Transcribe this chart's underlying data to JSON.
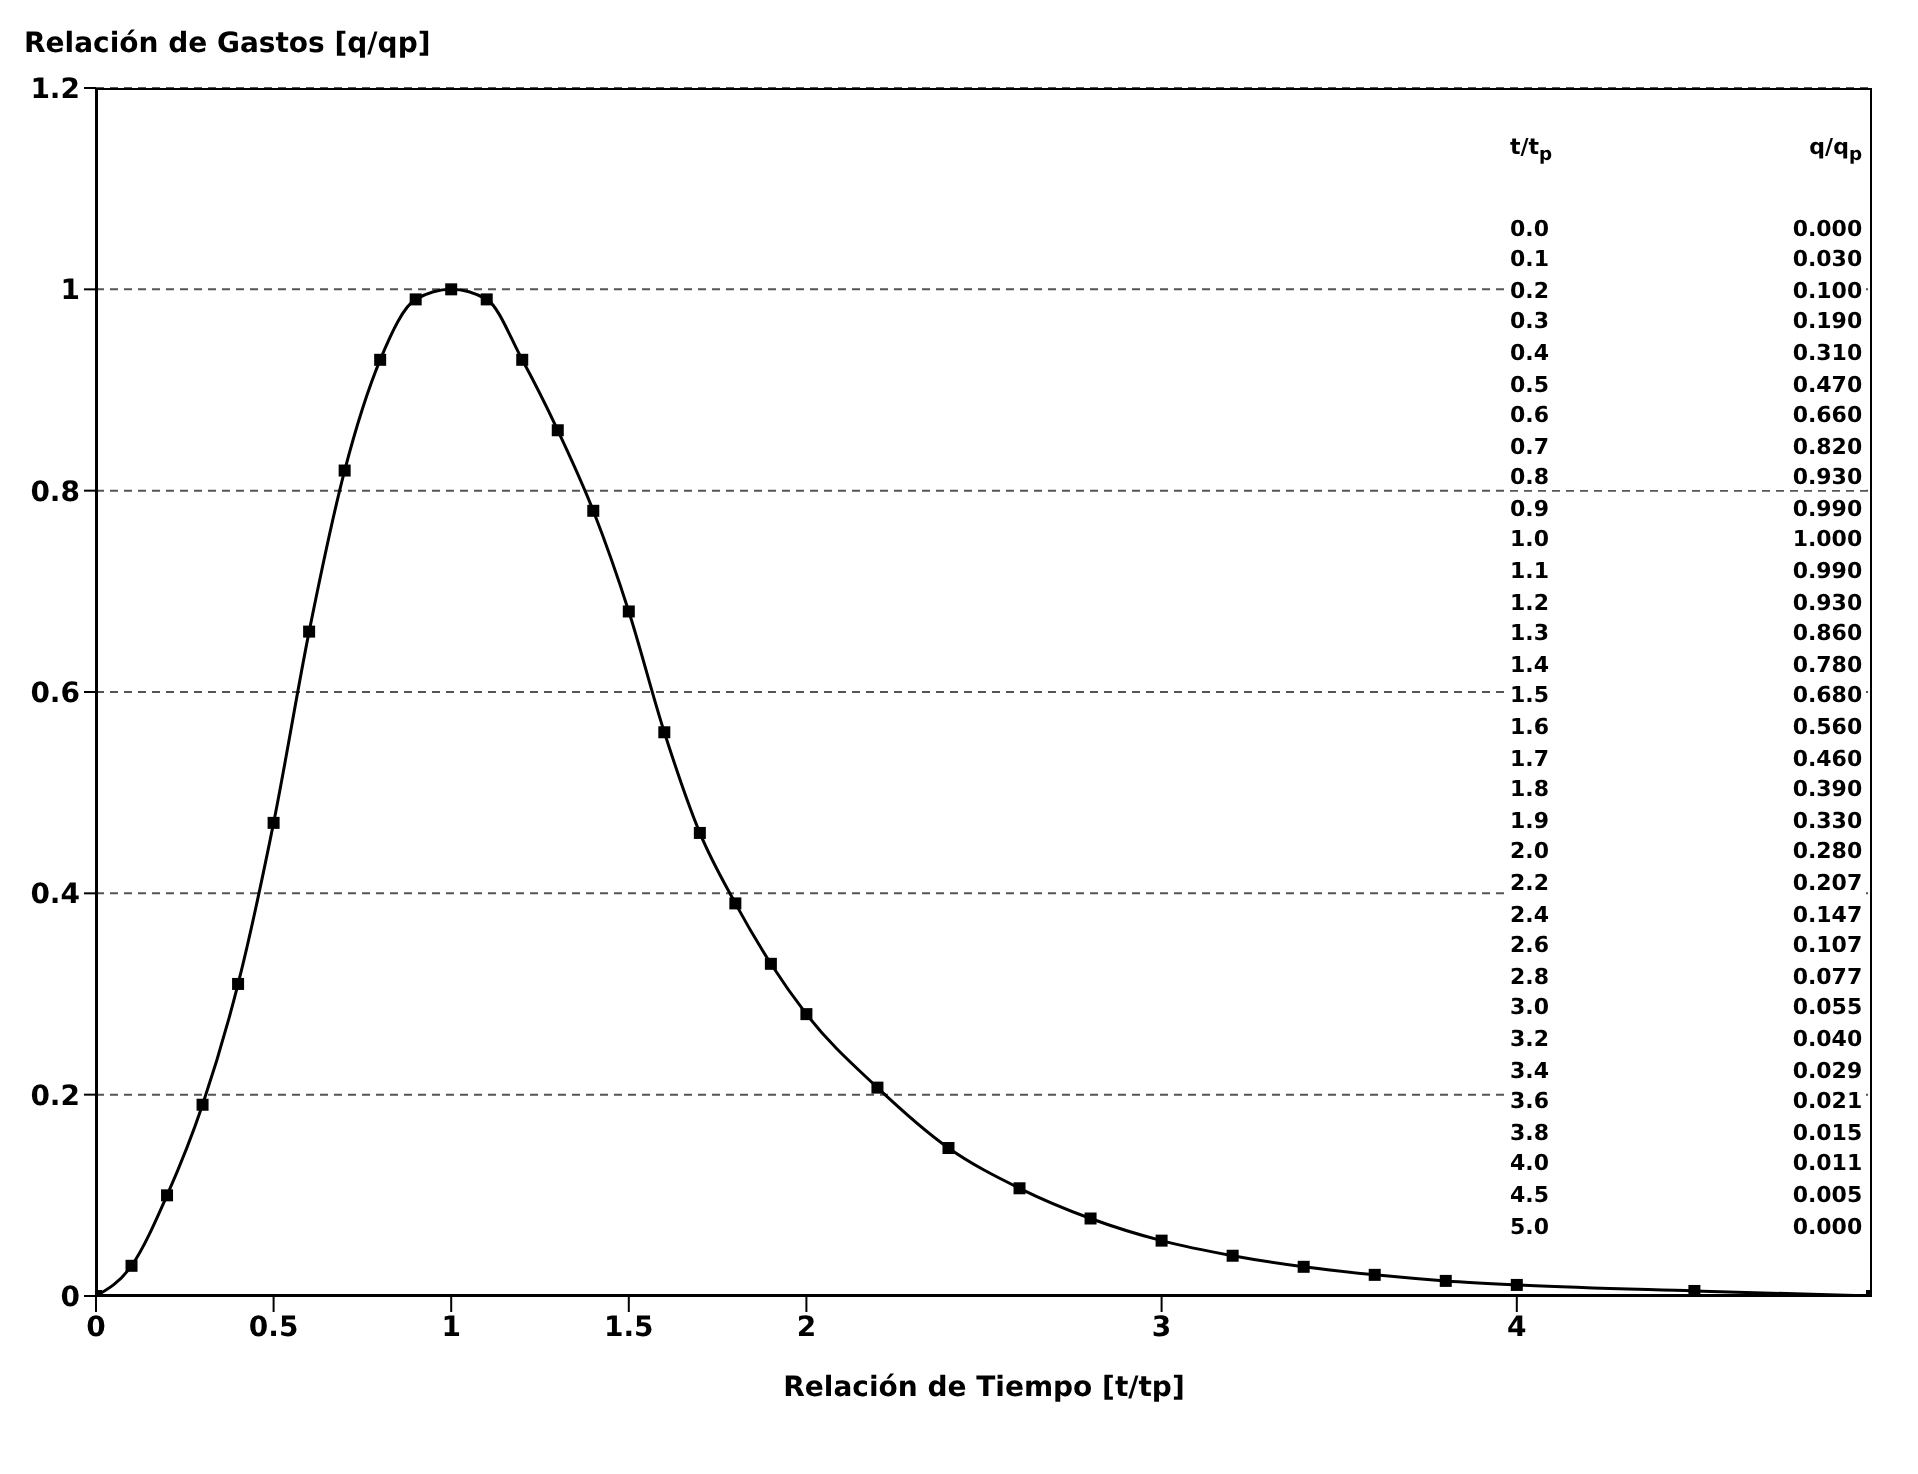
{
  "chart_data": [
    {
      "type": "line",
      "ylabel": "Relación de Gastos [q/qp]",
      "xlabel": "Relación de Tiempo [t/tp]",
      "x": [
        0,
        0.1,
        0.2,
        0.3,
        0.4,
        0.5,
        0.6,
        0.7,
        0.8,
        0.9,
        1.0,
        1.1,
        1.2,
        1.3,
        1.4,
        1.5,
        1.6,
        1.7,
        1.8,
        1.9,
        2.0,
        2.2,
        2.4,
        2.6,
        2.8,
        3.0,
        3.2,
        3.4,
        3.6,
        3.8,
        4.0,
        4.5,
        5.0
      ],
      "series": [
        {
          "color": "#000000",
          "values": [
            0.0,
            0.03,
            0.1,
            0.19,
            0.31,
            0.47,
            0.66,
            0.82,
            0.93,
            0.99,
            1.0,
            0.99,
            0.93,
            0.86,
            0.78,
            0.68,
            0.56,
            0.46,
            0.39,
            0.33,
            0.28,
            0.207,
            0.147,
            0.107,
            0.077,
            0.055,
            0.04,
            0.029,
            0.021,
            0.015,
            0.011,
            0.005,
            0.0
          ]
        }
      ],
      "xlim": [
        0,
        5
      ],
      "xticks": [
        0,
        0.5,
        1,
        1.5,
        2,
        3,
        4
      ],
      "ylim": [
        0,
        1.2
      ],
      "yticks": [
        0,
        0.2,
        0.4,
        0.6,
        0.8,
        1,
        1.2
      ],
      "grid": "y",
      "marker": "square",
      "line_style": "solid"
    },
    {
      "type": "other",
      "annotations": [
        "t/t$_{p}$",
        "q/q$_{p}$",
        "0.0 0.000",
        "0.1 0.030",
        "0.2 0.100",
        "0.3 0.190",
        "0.4 0.310",
        "0.5 0.470",
        "0.6 0.660",
        "0.7 0.820",
        "0.8 0.930",
        "0.9 0.990",
        "1.0 1.000",
        "1.1 0.990",
        "1.2 0.930",
        "1.3 0.860",
        "1.4 0.780",
        "1.5 0.680",
        "1.6 0.560",
        "1.7 0.460",
        "1.8 0.390",
        "1.9 0.330",
        "2.0 0.280",
        "2.2 0.207",
        "2.4 0.147",
        "2.6 0.107",
        "2.8 0.077",
        "3.0 0.055",
        "3.2 0.040",
        "3.4 0.029",
        "3.6 0.021",
        "3.8 0.015",
        "4.0 0.011",
        "4.5 0.005",
        "5.0 0.000"
      ]
    }
  ]
}
